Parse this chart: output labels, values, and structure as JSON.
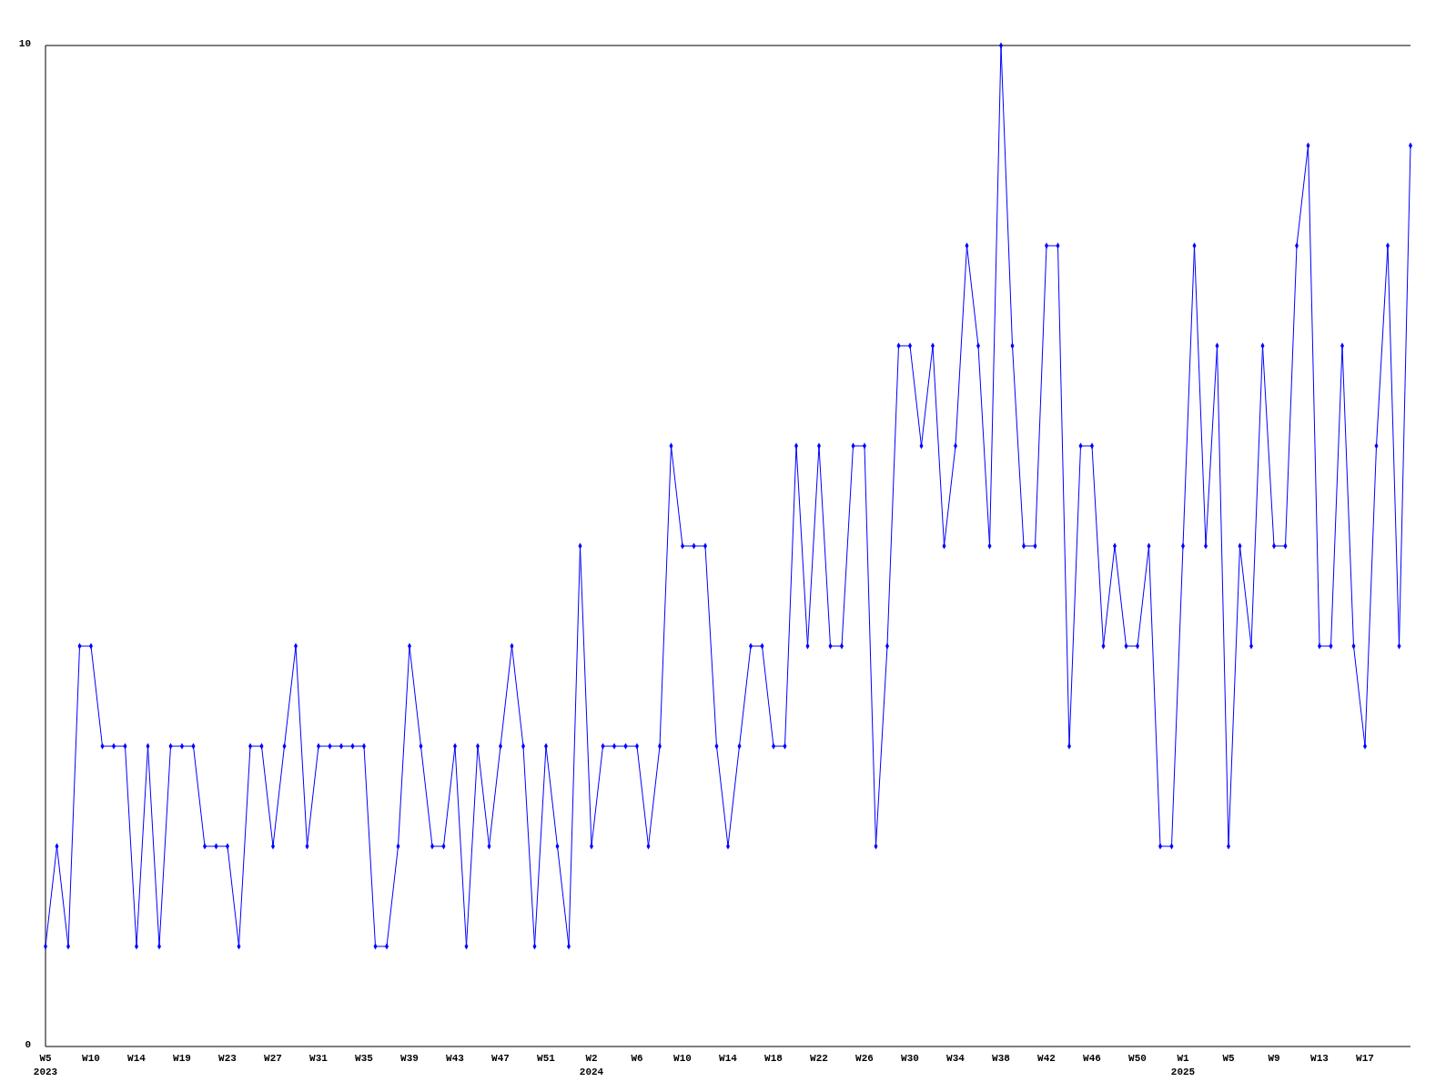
{
  "chart_data": {
    "type": "line",
    "categories": [
      "W5\n2023",
      null,
      null,
      null,
      "W10",
      null,
      null,
      null,
      "W14",
      null,
      null,
      null,
      "W19",
      null,
      null,
      null,
      "W23",
      null,
      null,
      null,
      "W27",
      null,
      null,
      null,
      "W31",
      null,
      null,
      null,
      "W35",
      null,
      null,
      null,
      "W39",
      null,
      null,
      null,
      "W43",
      null,
      null,
      null,
      "W47",
      null,
      null,
      null,
      "W51",
      null,
      null,
      null,
      "W2\n2024",
      null,
      null,
      null,
      "W6",
      null,
      null,
      null,
      "W10",
      null,
      null,
      null,
      "W14",
      null,
      null,
      null,
      "W18",
      null,
      null,
      null,
      "W22",
      null,
      null,
      null,
      "W26",
      null,
      null,
      null,
      "W30",
      null,
      null,
      null,
      "W34",
      null,
      null,
      null,
      "W38",
      null,
      null,
      null,
      "W42",
      null,
      null,
      null,
      "W46",
      null,
      null,
      null,
      "W50",
      null,
      null,
      null,
      "W1\n2025",
      null,
      null,
      null,
      "W5",
      null,
      null,
      null,
      "W9",
      null,
      null,
      null,
      "W13",
      null,
      null,
      null,
      "W17",
      null,
      null,
      null,
      null
    ],
    "series": [
      {
        "color": "#0000ff",
        "values": [
          1,
          2,
          1,
          4,
          4,
          3,
          3,
          3,
          1,
          3,
          1,
          3,
          3,
          3,
          2,
          2,
          2,
          1,
          3,
          3,
          2,
          3,
          4,
          2,
          3,
          3,
          3,
          3,
          3,
          1,
          1,
          2,
          4,
          3,
          2,
          2,
          3,
          1,
          3,
          2,
          3,
          4,
          3,
          1,
          3,
          2,
          1,
          5,
          2,
          3,
          3,
          3,
          3,
          2,
          3,
          6,
          5,
          5,
          5,
          3,
          2,
          3,
          4,
          4,
          3,
          3,
          6,
          4,
          6,
          4,
          4,
          6,
          6,
          2,
          4,
          7,
          7,
          6,
          7,
          5,
          6,
          8,
          7,
          5,
          10,
          7,
          5,
          5,
          8,
          8,
          3,
          6,
          6,
          4,
          5,
          4,
          4,
          5,
          2,
          2,
          5,
          8,
          5,
          7,
          2,
          5,
          4,
          7,
          5,
          5,
          8,
          9,
          4,
          4,
          7,
          4,
          3,
          6,
          8,
          4,
          9
        ]
      }
    ],
    "ylim": [
      0,
      10
    ],
    "yticks": [
      0,
      10
    ],
    "grid": false,
    "marker": "diamond",
    "line_style": "solid"
  }
}
